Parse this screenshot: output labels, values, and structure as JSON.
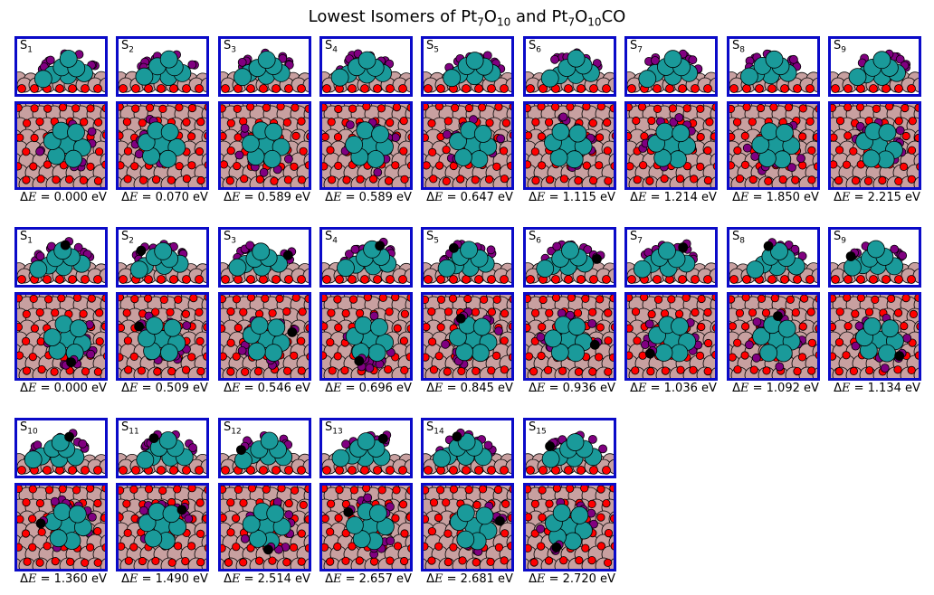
{
  "figure": {
    "title_parts": [
      "Lowest Isomers of Pt",
      "7",
      "O",
      "10",
      " and Pt",
      "7",
      "O",
      "10",
      "CO"
    ],
    "delta_symbol": "Δ",
    "energy_var": "E",
    "energy_unit": "eV"
  },
  "colors": {
    "frame": "#0a0ac8",
    "pt_cluster": "#1a9a9a",
    "oxygen_substrate": "#ff0000",
    "oxygen_cluster": "#800080",
    "surface_atom": "#c8a0a0",
    "carbon": "#000000"
  },
  "blocks": [
    {
      "id": "pt7o10",
      "has_co": false,
      "isomers": [
        {
          "label": "S",
          "index": "1",
          "energy": "0.000"
        },
        {
          "label": "S",
          "index": "2",
          "energy": "0.070"
        },
        {
          "label": "S",
          "index": "3",
          "energy": "0.589"
        },
        {
          "label": "S",
          "index": "4",
          "energy": "0.589"
        },
        {
          "label": "S",
          "index": "5",
          "energy": "0.647"
        },
        {
          "label": "S",
          "index": "6",
          "energy": "1.115"
        },
        {
          "label": "S",
          "index": "7",
          "energy": "1.214"
        },
        {
          "label": "S",
          "index": "8",
          "energy": "1.850"
        },
        {
          "label": "S",
          "index": "9",
          "energy": "2.215"
        }
      ]
    },
    {
      "id": "pt7o10co_a",
      "has_co": true,
      "isomers": [
        {
          "label": "S",
          "index": "1",
          "energy": "0.000"
        },
        {
          "label": "S",
          "index": "2",
          "energy": "0.509"
        },
        {
          "label": "S",
          "index": "3",
          "energy": "0.546"
        },
        {
          "label": "S",
          "index": "4",
          "energy": "0.696"
        },
        {
          "label": "S",
          "index": "5",
          "energy": "0.845"
        },
        {
          "label": "S",
          "index": "6",
          "energy": "0.936"
        },
        {
          "label": "S",
          "index": "7",
          "energy": "1.036"
        },
        {
          "label": "S",
          "index": "8",
          "energy": "1.092"
        },
        {
          "label": "S",
          "index": "9",
          "energy": "1.134"
        }
      ]
    },
    {
      "id": "pt7o10co_b",
      "has_co": true,
      "isomers": [
        {
          "label": "S",
          "index": "10",
          "energy": "1.360"
        },
        {
          "label": "S",
          "index": "11",
          "energy": "1.490"
        },
        {
          "label": "S",
          "index": "12",
          "energy": "2.514"
        },
        {
          "label": "S",
          "index": "13",
          "energy": "2.657"
        },
        {
          "label": "S",
          "index": "14",
          "energy": "2.681"
        },
        {
          "label": "S",
          "index": "15",
          "energy": "2.720"
        }
      ]
    }
  ]
}
